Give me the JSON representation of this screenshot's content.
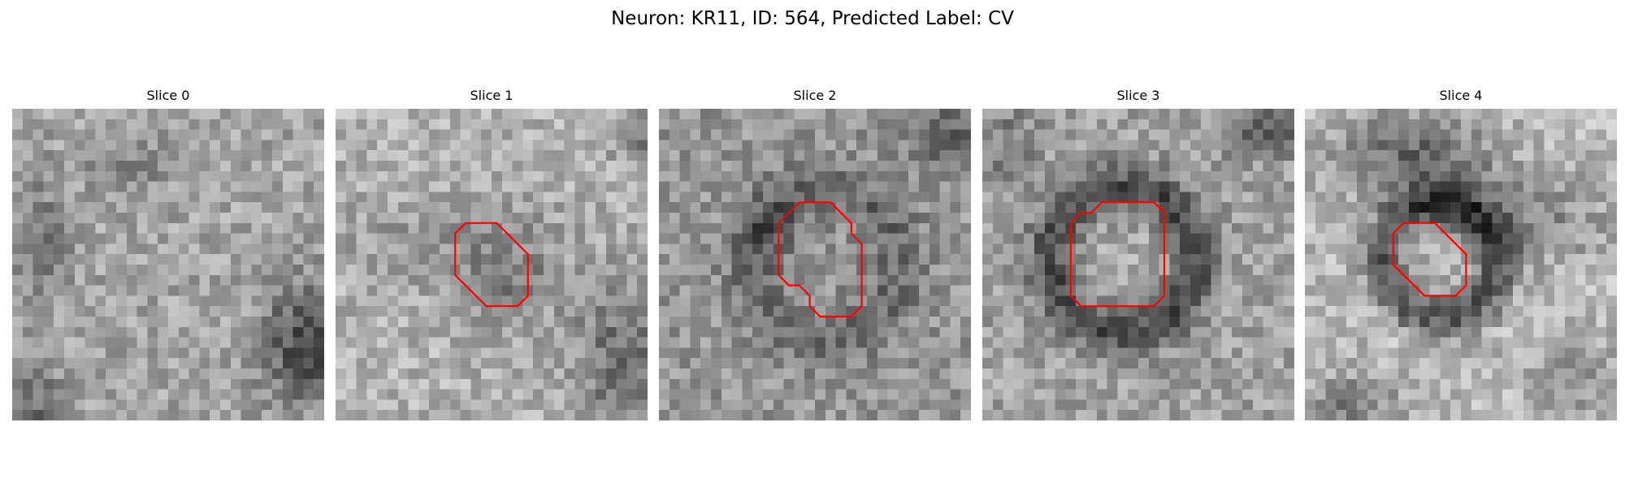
{
  "suptitle": "Neuron: KR11, ID: 564, Predicted Label: CV",
  "colors": {
    "contour": "#ff0000",
    "colormap": "gray"
  },
  "slices": [
    {
      "title": "Slice 0",
      "contour": []
    },
    {
      "title": "Slice 1",
      "contour": [
        [
          12.5,
          11
        ],
        [
          15.5,
          11
        ],
        [
          18.5,
          14
        ],
        [
          18.5,
          18
        ],
        [
          17.5,
          19
        ],
        [
          14.5,
          19
        ],
        [
          11.5,
          16
        ],
        [
          11.5,
          12
        ],
        [
          12.5,
          11
        ]
      ]
    },
    {
      "title": "Slice 2",
      "contour": [
        [
          13.5,
          9
        ],
        [
          16.5,
          9
        ],
        [
          18.5,
          11
        ],
        [
          18.5,
          12
        ],
        [
          19.5,
          13
        ],
        [
          19.5,
          19
        ],
        [
          18.5,
          20
        ],
        [
          15.5,
          20
        ],
        [
          14.5,
          19
        ],
        [
          14.5,
          18
        ],
        [
          13.5,
          17
        ],
        [
          12.5,
          17
        ],
        [
          11.5,
          16
        ],
        [
          11.5,
          11
        ],
        [
          12.5,
          10
        ],
        [
          13.5,
          9
        ]
      ]
    },
    {
      "title": "Slice 3",
      "contour": [
        [
          11.5,
          9
        ],
        [
          16.5,
          9
        ],
        [
          17.5,
          10
        ],
        [
          17.5,
          18
        ],
        [
          16.5,
          19
        ],
        [
          9.5,
          19
        ],
        [
          8.5,
          18
        ],
        [
          8.5,
          11
        ],
        [
          9.5,
          10
        ],
        [
          10.5,
          10
        ],
        [
          11.5,
          9
        ]
      ]
    },
    {
      "title": "Slice 4",
      "contour": [
        [
          10.5,
          11
        ],
        [
          12.5,
          11
        ],
        [
          15.5,
          14
        ],
        [
          15.5,
          17
        ],
        [
          14.5,
          18
        ],
        [
          11.5,
          18
        ],
        [
          8.5,
          15
        ],
        [
          8.5,
          12
        ],
        [
          9.5,
          11
        ],
        [
          10.5,
          11
        ]
      ]
    }
  ]
}
